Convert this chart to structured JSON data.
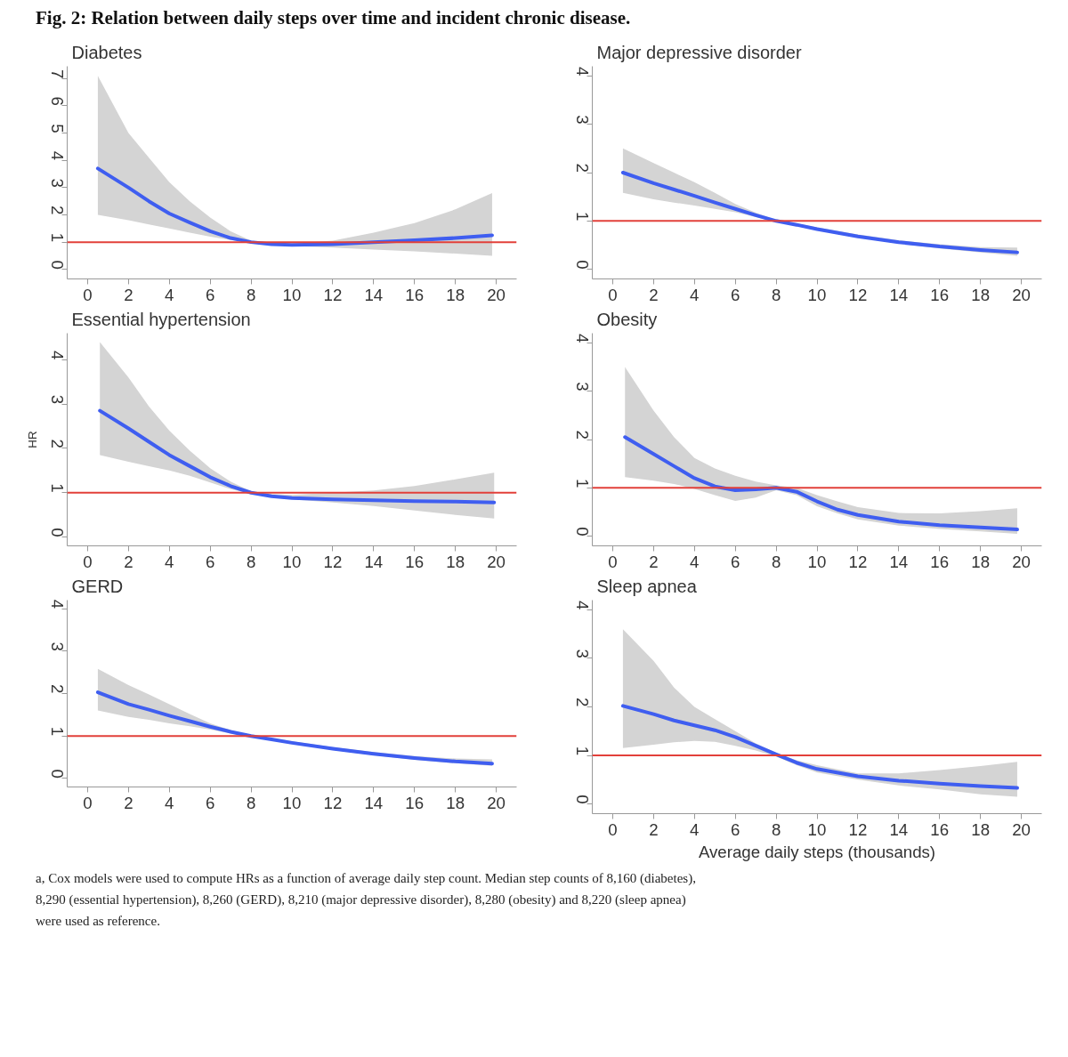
{
  "chart_data": [
    {
      "type": "line",
      "title": "Diabetes",
      "annotations": [
        "Fig. 2: Relation between daily steps over time and incident chronic disease."
      ],
      "xlim": [
        -1,
        21
      ],
      "ylim": [
        -0.35,
        7.45
      ],
      "xticks": [
        0,
        2,
        4,
        6,
        8,
        10,
        12,
        14,
        16,
        18,
        20
      ],
      "yticks": [
        0,
        1,
        2,
        3,
        4,
        5,
        6,
        7
      ],
      "series": [
        {
          "color": "#3f5ef0",
          "x": [
            0.5,
            2,
            3,
            4,
            5,
            6,
            7,
            8,
            9,
            10,
            12,
            14,
            16,
            18,
            19.8
          ],
          "values": [
            3.7,
            3.0,
            2.5,
            2.05,
            1.72,
            1.4,
            1.15,
            1.0,
            0.92,
            0.9,
            0.92,
            1.0,
            1.07,
            1.15,
            1.25
          ],
          "lower": [
            2.0,
            1.8,
            1.65,
            1.5,
            1.35,
            1.2,
            1.08,
            0.98,
            0.9,
            0.86,
            0.8,
            0.73,
            0.66,
            0.58,
            0.5
          ],
          "upper": [
            7.1,
            5.0,
            4.1,
            3.2,
            2.5,
            1.9,
            1.4,
            1.05,
            0.97,
            0.95,
            1.05,
            1.35,
            1.7,
            2.2,
            2.8
          ]
        }
      ],
      "ref_lines": [
        {
          "axis": "y",
          "value": 1,
          "color": "#e2403a"
        }
      ]
    },
    {
      "type": "line",
      "title": "Major depressive disorder",
      "xlim": [
        -1,
        21
      ],
      "ylim": [
        -0.2,
        4.2
      ],
      "xticks": [
        0,
        2,
        4,
        6,
        8,
        10,
        12,
        14,
        16,
        18,
        20
      ],
      "yticks": [
        0,
        1,
        2,
        3,
        4
      ],
      "series": [
        {
          "color": "#3f5ef0",
          "x": [
            0.5,
            2,
            3,
            4,
            5,
            6,
            7,
            8,
            9,
            10,
            12,
            14,
            16,
            18,
            19.8
          ],
          "values": [
            2.0,
            1.78,
            1.65,
            1.52,
            1.38,
            1.25,
            1.12,
            1.0,
            0.92,
            0.83,
            0.68,
            0.56,
            0.47,
            0.4,
            0.35
          ],
          "lower": [
            1.58,
            1.45,
            1.38,
            1.32,
            1.25,
            1.18,
            1.08,
            0.98,
            0.89,
            0.81,
            0.66,
            0.53,
            0.43,
            0.35,
            0.28
          ],
          "upper": [
            2.5,
            2.2,
            2.0,
            1.8,
            1.58,
            1.35,
            1.17,
            1.02,
            0.95,
            0.87,
            0.72,
            0.6,
            0.52,
            0.46,
            0.45
          ]
        }
      ],
      "ref_lines": [
        {
          "axis": "y",
          "value": 1,
          "color": "#e2403a"
        }
      ]
    },
    {
      "type": "line",
      "title": "Essential hypertension",
      "ylabel": "HR",
      "xlim": [
        -1,
        21
      ],
      "ylim": [
        -0.2,
        4.6
      ],
      "xticks": [
        0,
        2,
        4,
        6,
        8,
        10,
        12,
        14,
        16,
        18,
        20
      ],
      "yticks": [
        0,
        1,
        2,
        3,
        4
      ],
      "series": [
        {
          "color": "#3f5ef0",
          "x": [
            0.6,
            2,
            3,
            4,
            5,
            6,
            7,
            8,
            9,
            10,
            12,
            14,
            16,
            18,
            19.9
          ],
          "values": [
            2.85,
            2.45,
            2.15,
            1.85,
            1.6,
            1.35,
            1.15,
            1.0,
            0.92,
            0.88,
            0.85,
            0.83,
            0.81,
            0.8,
            0.78
          ],
          "lower": [
            1.85,
            1.7,
            1.6,
            1.5,
            1.38,
            1.23,
            1.08,
            0.98,
            0.9,
            0.85,
            0.78,
            0.7,
            0.6,
            0.5,
            0.42
          ],
          "upper": [
            4.4,
            3.6,
            2.95,
            2.4,
            1.95,
            1.55,
            1.25,
            1.03,
            0.97,
            0.95,
            1.0,
            1.05,
            1.15,
            1.3,
            1.45
          ]
        }
      ],
      "ref_lines": [
        {
          "axis": "y",
          "value": 1,
          "color": "#e2403a"
        }
      ]
    },
    {
      "type": "line",
      "title": "Obesity",
      "xlim": [
        -1,
        21
      ],
      "ylim": [
        -0.2,
        4.2
      ],
      "xticks": [
        0,
        2,
        4,
        6,
        8,
        10,
        12,
        14,
        16,
        18,
        20
      ],
      "yticks": [
        0,
        1,
        2,
        3,
        4
      ],
      "series": [
        {
          "color": "#3f5ef0",
          "x": [
            0.6,
            2,
            3,
            4,
            5,
            6,
            7,
            8,
            9,
            10,
            11,
            12,
            14,
            16,
            18,
            19.8
          ],
          "values": [
            2.05,
            1.7,
            1.45,
            1.2,
            1.03,
            0.95,
            0.97,
            1.0,
            0.92,
            0.72,
            0.55,
            0.44,
            0.3,
            0.23,
            0.18,
            0.14
          ],
          "lower": [
            1.22,
            1.15,
            1.08,
            0.98,
            0.85,
            0.73,
            0.8,
            0.95,
            0.85,
            0.62,
            0.47,
            0.35,
            0.22,
            0.15,
            0.1,
            0.05
          ],
          "upper": [
            3.5,
            2.6,
            2.05,
            1.62,
            1.4,
            1.25,
            1.13,
            1.05,
            1.0,
            0.85,
            0.72,
            0.6,
            0.48,
            0.47,
            0.52,
            0.58
          ]
        }
      ],
      "ref_lines": [
        {
          "axis": "y",
          "value": 1,
          "color": "#e2403a"
        }
      ]
    },
    {
      "type": "line",
      "title": "GERD",
      "xlim": [
        -1,
        21
      ],
      "ylim": [
        -0.2,
        4.2
      ],
      "xticks": [
        0,
        2,
        4,
        6,
        8,
        10,
        12,
        14,
        16,
        18,
        20
      ],
      "yticks": [
        0,
        1,
        2,
        3,
        4
      ],
      "series": [
        {
          "color": "#3f5ef0",
          "x": [
            0.5,
            2,
            3,
            4,
            5,
            6,
            7,
            8,
            9,
            10,
            12,
            14,
            16,
            18,
            19.8
          ],
          "values": [
            2.03,
            1.75,
            1.62,
            1.48,
            1.35,
            1.22,
            1.1,
            1.0,
            0.92,
            0.84,
            0.7,
            0.58,
            0.48,
            0.4,
            0.35
          ],
          "lower": [
            1.6,
            1.45,
            1.38,
            1.3,
            1.23,
            1.15,
            1.06,
            0.98,
            0.9,
            0.82,
            0.67,
            0.55,
            0.44,
            0.36,
            0.3
          ],
          "upper": [
            2.58,
            2.2,
            1.98,
            1.75,
            1.52,
            1.3,
            1.14,
            1.02,
            0.95,
            0.88,
            0.74,
            0.62,
            0.53,
            0.47,
            0.45
          ]
        }
      ],
      "ref_lines": [
        {
          "axis": "y",
          "value": 1,
          "color": "#e2403a"
        }
      ]
    },
    {
      "type": "line",
      "title": "Sleep apnea",
      "xlabel": "Average daily steps (thousands)",
      "annotations": [
        "a, Cox models were used to compute HRs as a function of average daily step count. Median step counts of 8,160 (diabetes), 8,290 (essential hypertension), 8,260 (GERD), 8,210 (major depressive disorder), 8,280 (obesity) and 8,220 (sleep apnea) were used as reference."
      ],
      "xlim": [
        -1,
        21
      ],
      "ylim": [
        -0.2,
        4.2
      ],
      "xticks": [
        0,
        2,
        4,
        6,
        8,
        10,
        12,
        14,
        16,
        18,
        20
      ],
      "yticks": [
        0,
        1,
        2,
        3,
        4
      ],
      "series": [
        {
          "color": "#3f5ef0",
          "x": [
            0.5,
            2,
            3,
            4,
            5,
            6,
            7,
            8,
            9,
            10,
            12,
            14,
            16,
            18,
            19.8
          ],
          "values": [
            2.02,
            1.85,
            1.72,
            1.62,
            1.52,
            1.38,
            1.2,
            1.02,
            0.85,
            0.72,
            0.57,
            0.48,
            0.42,
            0.37,
            0.33
          ],
          "lower": [
            1.15,
            1.22,
            1.27,
            1.3,
            1.28,
            1.2,
            1.1,
            0.98,
            0.8,
            0.65,
            0.5,
            0.38,
            0.3,
            0.2,
            0.15
          ],
          "upper": [
            3.6,
            2.95,
            2.4,
            2.0,
            1.75,
            1.5,
            1.25,
            1.05,
            0.9,
            0.8,
            0.63,
            0.63,
            0.7,
            0.78,
            0.87
          ]
        }
      ],
      "ref_lines": [
        {
          "axis": "y",
          "value": 1,
          "color": "#e2403a"
        }
      ]
    }
  ]
}
